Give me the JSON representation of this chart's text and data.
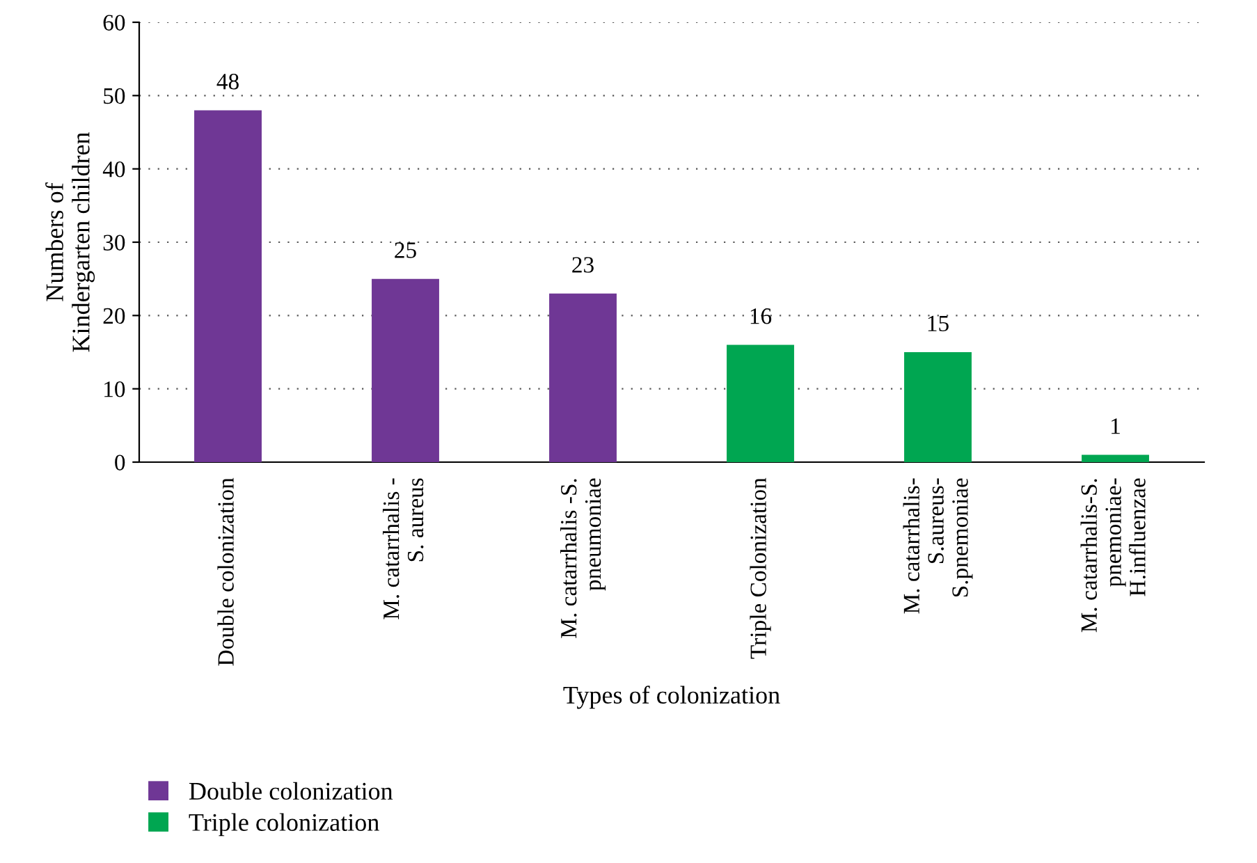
{
  "chart_data": {
    "type": "bar",
    "xlabel": "Types of colonization",
    "ylabel": "Numbers of\nKindergarten children",
    "categories": [
      "Double colonization",
      "M. catarrhalis -\nS. aureus",
      "M. catarrhalis -S.\npneumoniae",
      "Triple Colonization",
      "M. catarrhalis-\nS.aureus-\nS.pnemoniae",
      "M. catarrhalis-S.\npnemoniae-\nH.influenzae"
    ],
    "series": [
      {
        "name": "Double colonization",
        "color": "#6f3795",
        "values": [
          48,
          25,
          23,
          null,
          null,
          null
        ]
      },
      {
        "name": "Triple colonization",
        "color": "#00a651",
        "values": [
          null,
          null,
          null,
          16,
          15,
          1
        ]
      }
    ],
    "stacked": true,
    "ylim": [
      0,
      60
    ],
    "yticks": [
      0,
      10,
      20,
      30,
      40,
      50,
      60
    ],
    "grid": "y",
    "legend": "bottom left",
    "data_labels": true
  }
}
